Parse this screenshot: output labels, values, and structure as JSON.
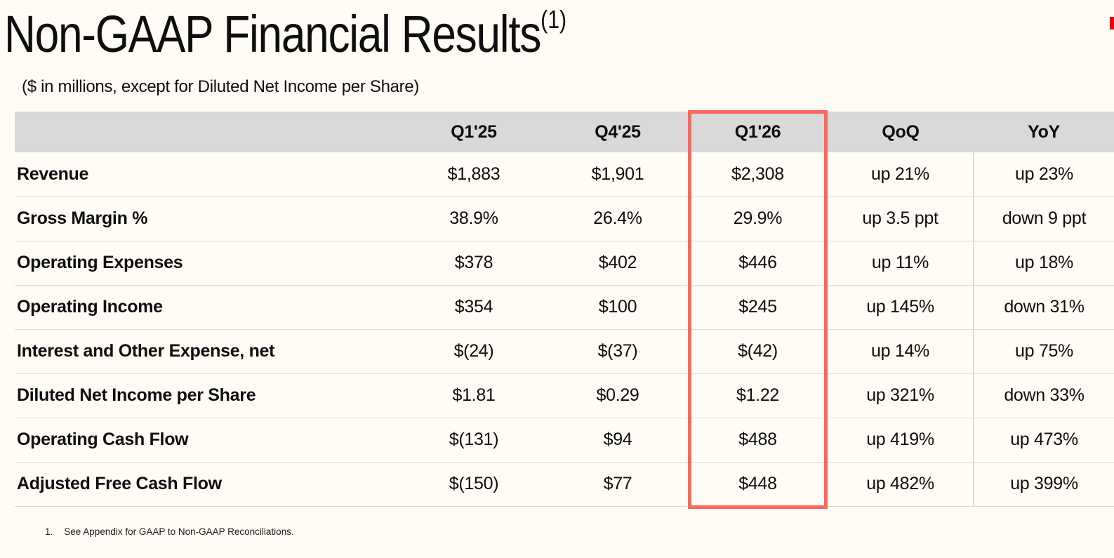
{
  "slide": {
    "title": "Non-GAAP Financial Results",
    "title_footnote_ref": "(1)",
    "subtitle": "($ in millions, except for Diluted Net Income per Share)",
    "footnote": {
      "number": "1.",
      "text": "See Appendix for GAAP to Non-GAAP Reconciliations."
    }
  },
  "colors": {
    "background": "#fffbf5",
    "header_bg": "#d9d9d9",
    "highlight_border": "#f8685c",
    "row_divider": "#dfdddb",
    "logo_red": "#dd0807",
    "text": "#0e0e0e"
  },
  "table": {
    "columns": [
      "",
      "Q1'25",
      "Q4'25",
      "Q1'26",
      "QoQ",
      "YoY"
    ],
    "highlighted_column": "Q1'26",
    "rows": [
      {
        "label": "Revenue",
        "values": [
          "$1,883",
          "$1,901",
          "$2,308",
          "up 21%",
          "up 23%"
        ]
      },
      {
        "label": "Gross Margin %",
        "values": [
          "38.9%",
          "26.4%",
          "29.9%",
          "up 3.5 ppt",
          "down 9 ppt"
        ]
      },
      {
        "label": "Operating Expenses",
        "values": [
          "$378",
          "$402",
          "$446",
          "up 11%",
          "up 18%"
        ]
      },
      {
        "label": "Operating Income",
        "values": [
          "$354",
          "$100",
          "$245",
          "up 145%",
          "down 31%"
        ]
      },
      {
        "label": "Interest and Other Expense, net",
        "values": [
          "$(24)",
          "$(37)",
          "$(42)",
          "up 14%",
          "up 75%"
        ]
      },
      {
        "label": "Diluted Net Income per Share",
        "values": [
          "$1.81",
          "$0.29",
          "$1.22",
          "up 321%",
          "down 33%"
        ]
      },
      {
        "label": "Operating Cash Flow",
        "values": [
          "$(131)",
          "$94",
          "$488",
          "up 419%",
          "up 473%"
        ]
      },
      {
        "label": "Adjusted Free Cash Flow",
        "values": [
          "$(150)",
          "$77",
          "$448",
          "up 482%",
          "up 399%"
        ]
      }
    ]
  },
  "chart_data": {
    "type": "table",
    "title": "Non-GAAP Financial Results",
    "categories": [
      "Q1'25",
      "Q4'25",
      "Q1'26",
      "QoQ",
      "YoY"
    ],
    "series": [
      {
        "name": "Revenue",
        "values": [
          "$1,883",
          "$1,901",
          "$2,308",
          "up 21%",
          "up 23%"
        ]
      },
      {
        "name": "Gross Margin %",
        "values": [
          "38.9%",
          "26.4%",
          "29.9%",
          "up 3.5 ppt",
          "down 9 ppt"
        ]
      },
      {
        "name": "Operating Expenses",
        "values": [
          "$378",
          "$402",
          "$446",
          "up 11%",
          "up 18%"
        ]
      },
      {
        "name": "Operating Income",
        "values": [
          "$354",
          "$100",
          "$245",
          "up 145%",
          "down 31%"
        ]
      },
      {
        "name": "Interest and Other Expense, net",
        "values": [
          "$(24)",
          "$(37)",
          "$(42)",
          "up 14%",
          "up 75%"
        ]
      },
      {
        "name": "Diluted Net Income per Share",
        "values": [
          "$1.81",
          "$0.29",
          "$1.22",
          "up 321%",
          "down 33%"
        ]
      },
      {
        "name": "Operating Cash Flow",
        "values": [
          "$(131)",
          "$94",
          "$488",
          "up 419%",
          "up 473%"
        ]
      },
      {
        "name": "Adjusted Free Cash Flow",
        "values": [
          "$(150)",
          "$77",
          "$448",
          "up 482%",
          "up 399%"
        ]
      }
    ]
  }
}
